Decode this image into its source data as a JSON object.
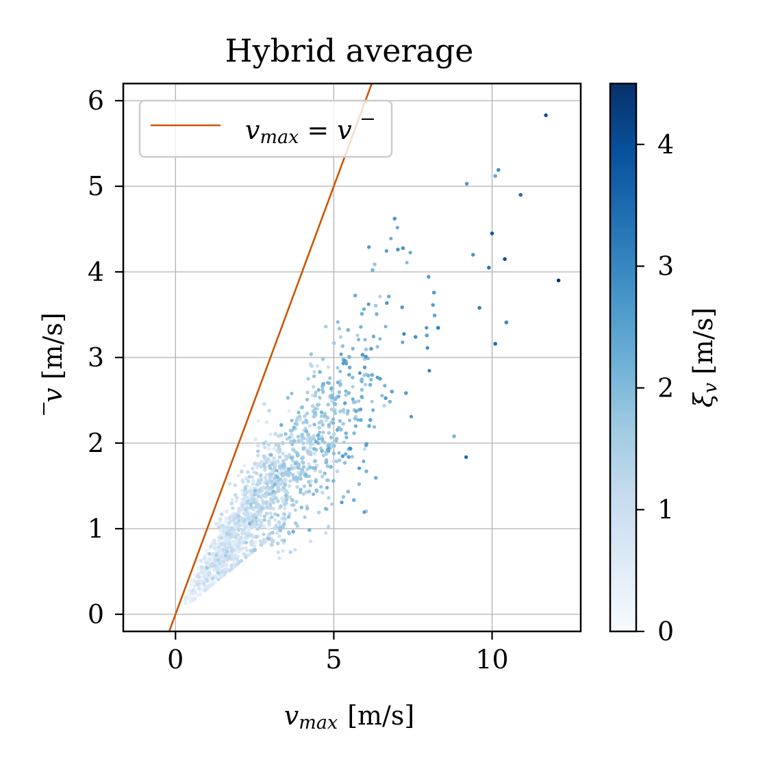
{
  "chart_data": {
    "type": "scatter",
    "title": "Hybrid average",
    "xlabel": {
      "var": "v",
      "sub": "max",
      "unit": "[m/s]"
    },
    "ylabel": {
      "var": "v",
      "overline": true,
      "unit": "[m/s]"
    },
    "xlim": [
      -1.65,
      12.8
    ],
    "ylim": [
      -0.2,
      6.2
    ],
    "xticks": [
      0,
      5,
      10
    ],
    "yticks": [
      0,
      1,
      2,
      3,
      4,
      5,
      6
    ],
    "grid": true,
    "legend": {
      "position": "top-left",
      "entries": [
        {
          "label_lhs": {
            "var": "v",
            "sub": "max"
          },
          "label_eq": "=",
          "label_rhs": {
            "var": "v",
            "overline": true
          },
          "color": "#cc5500",
          "kind": "line"
        }
      ]
    },
    "reference_line": {
      "slope": 1,
      "intercept": 0,
      "color": "#cc5500"
    },
    "colorbar": {
      "label": {
        "var": "ξ",
        "sub": "v",
        "unit": "[m/s]"
      },
      "range": [
        0,
        4.5
      ],
      "ticks": [
        0,
        1,
        2,
        3,
        4
      ],
      "colormap": "Blues"
    },
    "points_summary": "about 6000 points; cloud from (0,0) spreading to vmax≈12, mean≈5.8; color xi grows with vmax",
    "outlier_points": [
      {
        "x": 11.7,
        "y": 5.83,
        "c": 3.9
      },
      {
        "x": 12.1,
        "y": 3.9,
        "c": 4.4
      },
      {
        "x": 10.9,
        "y": 4.9,
        "c": 3.4
      },
      {
        "x": 10.2,
        "y": 5.19,
        "c": 2.9
      },
      {
        "x": 10.1,
        "y": 5.12,
        "c": 2.4
      },
      {
        "x": 10.45,
        "y": 3.41,
        "c": 3.0
      },
      {
        "x": 10.1,
        "y": 3.16,
        "c": 3.5
      },
      {
        "x": 8.8,
        "y": 2.08,
        "c": 2.1
      },
      {
        "x": 10.0,
        "y": 4.45,
        "c": 3.8
      },
      {
        "x": 10.4,
        "y": 4.15,
        "c": 3.9
      },
      {
        "x": 9.2,
        "y": 5.03,
        "c": 2.6
      },
      {
        "x": 9.6,
        "y": 3.58,
        "c": 3.1
      },
      {
        "x": 9.9,
        "y": 4.05,
        "c": 3.3
      },
      {
        "x": 9.4,
        "y": 4.2,
        "c": 2.7
      }
    ]
  }
}
